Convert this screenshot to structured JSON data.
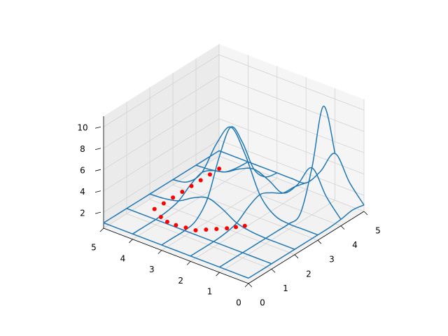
{
  "chart_data": {
    "type": "wireframe3d",
    "xlim": [
      0,
      5
    ],
    "ylim": [
      0,
      5
    ],
    "zlim": [
      0.5,
      11
    ],
    "xticks": [
      0,
      1,
      2,
      3,
      4,
      5
    ],
    "yticks": [
      0,
      1,
      2,
      3,
      4,
      5
    ],
    "zticks": [
      2,
      4,
      6,
      8,
      10
    ],
    "grid": true,
    "surface": {
      "color": "#1f77b4",
      "rstride": 2,
      "cstride": 2,
      "x": [
        0,
        0.5,
        1,
        1.5,
        2,
        2.5,
        3,
        3.5,
        4,
        4.5,
        5
      ],
      "y": [
        0,
        0.5,
        1,
        1.5,
        2,
        2.5,
        3,
        3.5,
        4,
        4.5,
        5
      ],
      "z": [
        [
          1,
          1,
          1,
          1,
          1,
          1,
          1,
          1,
          1,
          1,
          1
        ],
        [
          1,
          1,
          1,
          1,
          1,
          1,
          1,
          1,
          1,
          1,
          1
        ],
        [
          1,
          1,
          1,
          1,
          1,
          1,
          1,
          1,
          1,
          1,
          1
        ],
        [
          1,
          1,
          1,
          1,
          1.1,
          1.2,
          1.3,
          1.2,
          1.1,
          1,
          1
        ],
        [
          1,
          1,
          1,
          1.1,
          1.4,
          2.2,
          2.7,
          2.2,
          1.4,
          1.1,
          1
        ],
        [
          1,
          1,
          1,
          1.2,
          2.2,
          4.4,
          5.9,
          4.4,
          2.2,
          1.2,
          1
        ],
        [
          1,
          1,
          1,
          1.3,
          2.7,
          5.9,
          8,
          5.9,
          2.7,
          1.3,
          1
        ],
        [
          1,
          1.1,
          1.3,
          1.3,
          2.2,
          4.4,
          5.9,
          4.4,
          2.2,
          1.2,
          1
        ],
        [
          1.1,
          2.7,
          4.9,
          2.8,
          1.5,
          2.2,
          2.7,
          2.2,
          1.4,
          1.1,
          1
        ],
        [
          1.3,
          4.9,
          10,
          4.9,
          1.4,
          1.2,
          1.3,
          1.2,
          1.1,
          1,
          1
        ],
        [
          1.1,
          2.7,
          4.9,
          2.7,
          1.1,
          1,
          1,
          1,
          1,
          1,
          1
        ]
      ]
    },
    "scatter": {
      "color": "#ff0000",
      "x": [
        2.1,
        1.9,
        1.7,
        1.5,
        1.3,
        1.1,
        1.05,
        1.0,
        1.0,
        1.1,
        1.2,
        1.6,
        2.0,
        2.4,
        2.8,
        3.2,
        3.6,
        4.0
      ],
      "y": [
        1.8,
        1.95,
        2.1,
        2.3,
        2.5,
        2.7,
        3.0,
        3.3,
        3.6,
        3.9,
        4.2,
        4.2,
        4.2,
        4.2,
        4.2,
        4.2,
        4.2,
        4.2
      ],
      "z": [
        1.2,
        1.2,
        1.2,
        1.2,
        1.2,
        1.2,
        1.2,
        1.2,
        1.2,
        1.2,
        1.5,
        1.5,
        1.5,
        1.5,
        1.5,
        1.5,
        1.5,
        1.5
      ]
    }
  }
}
